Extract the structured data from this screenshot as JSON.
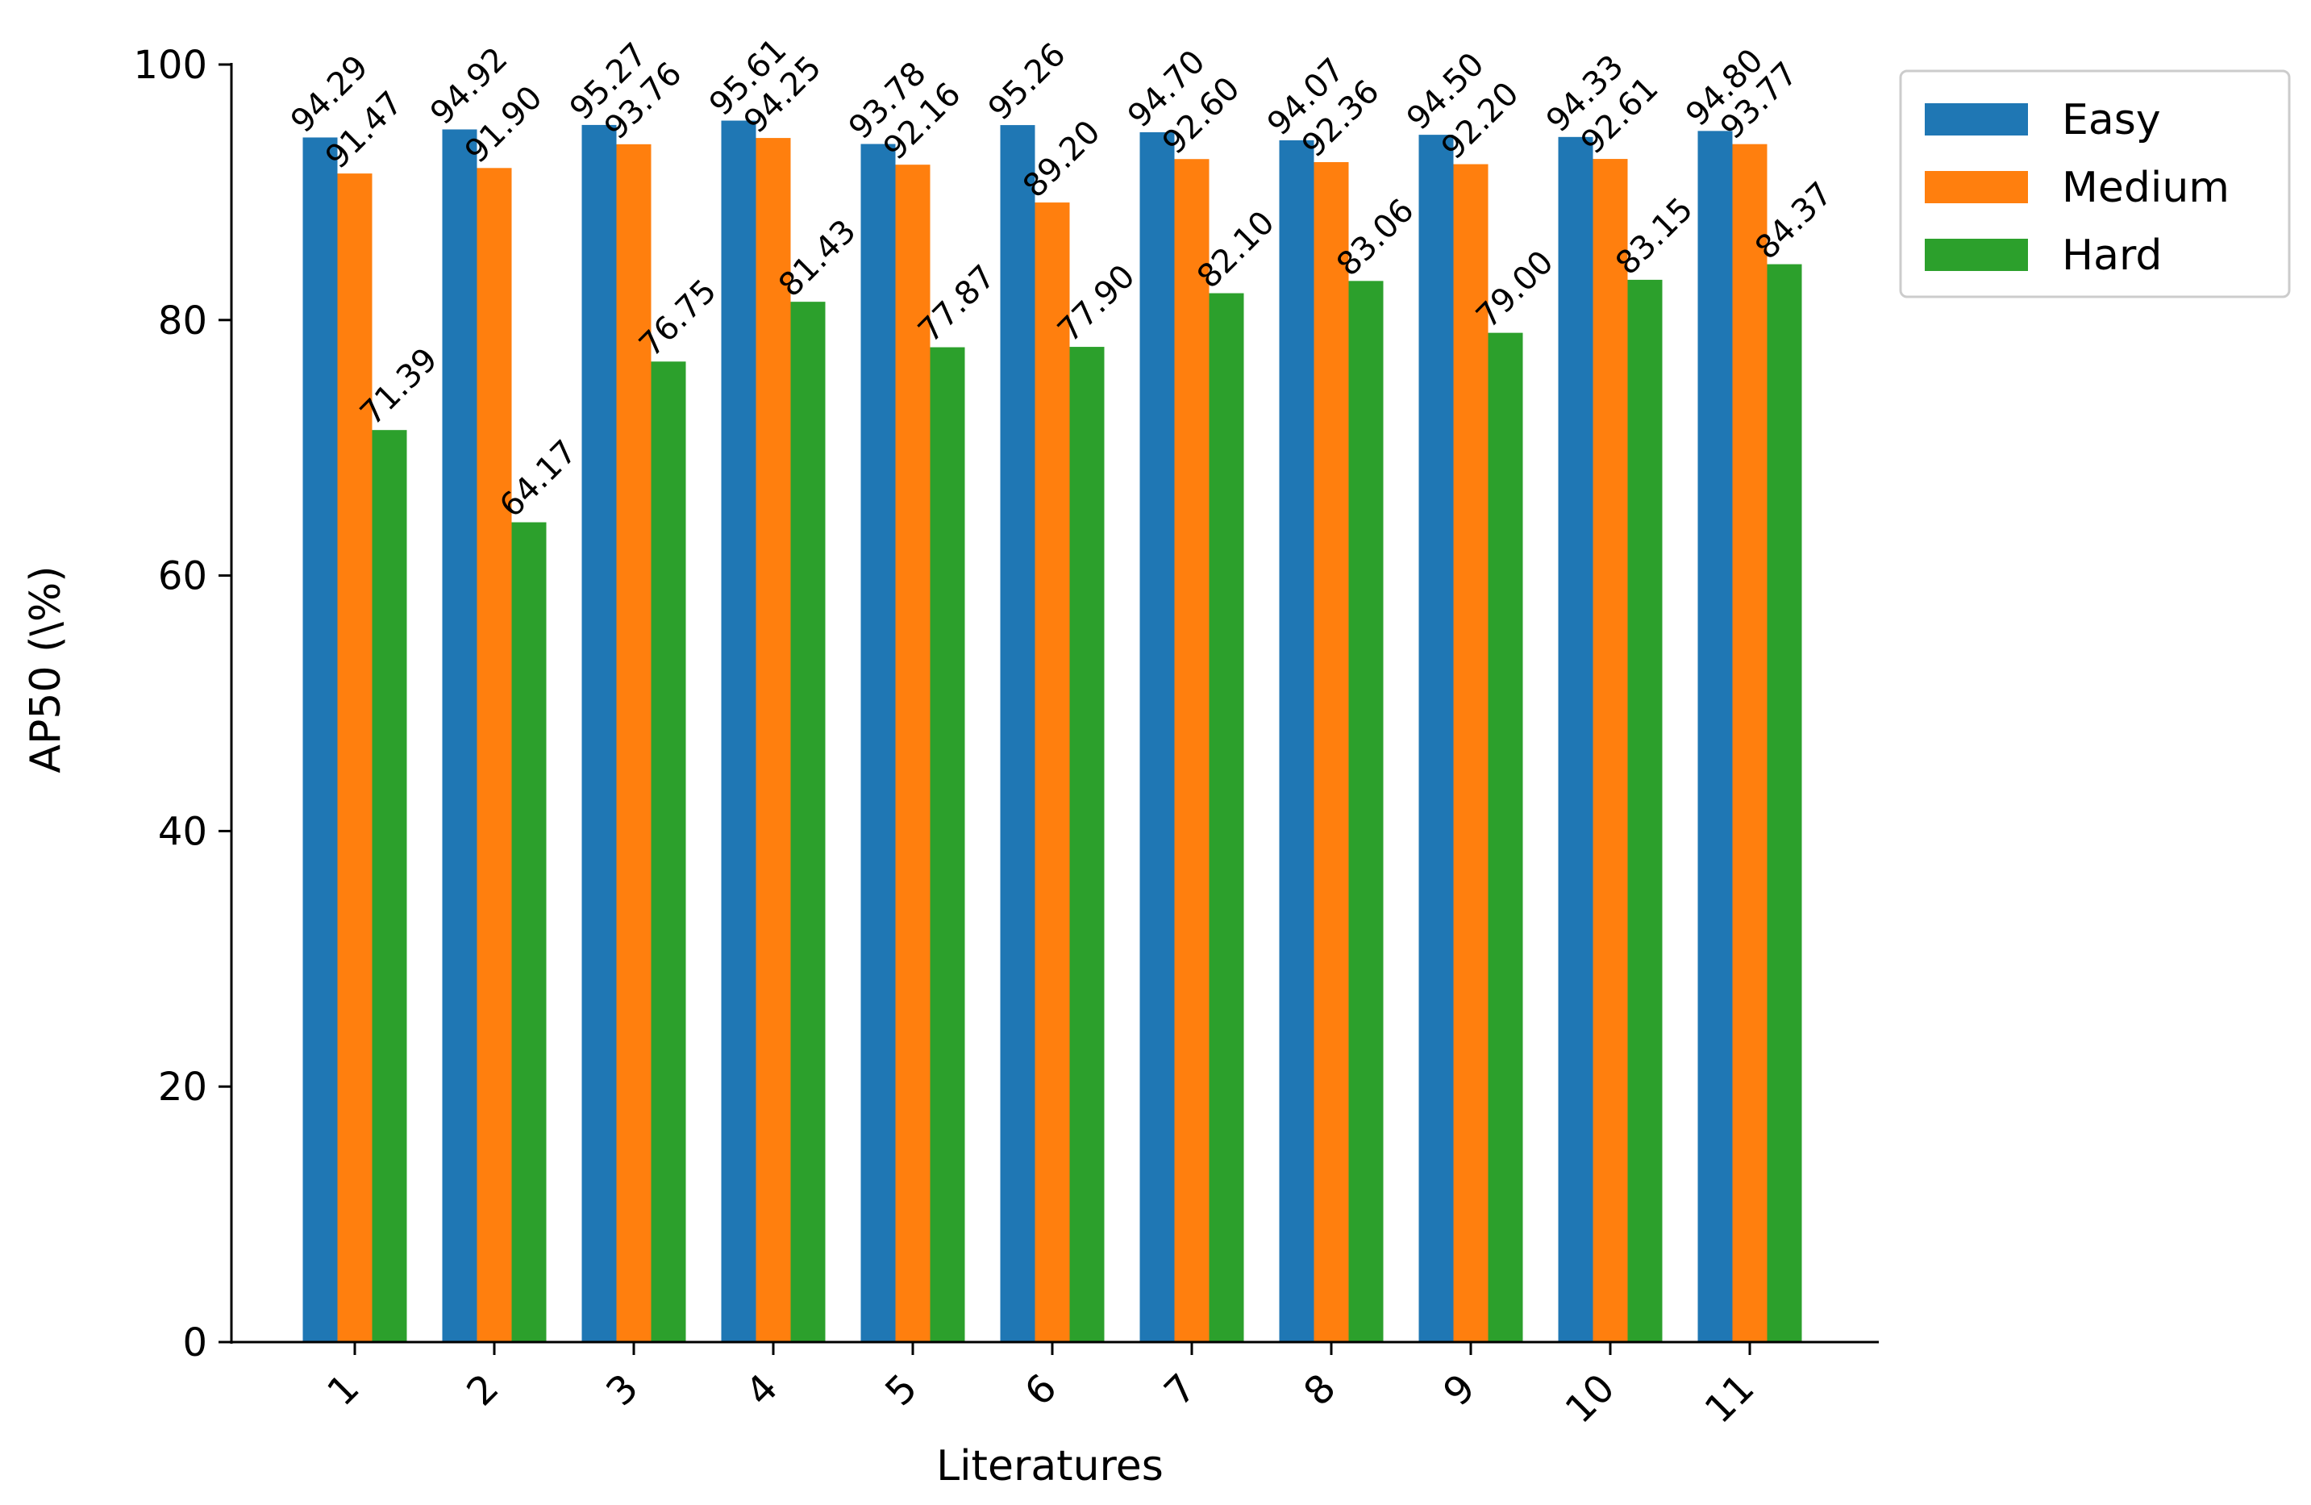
{
  "chart_data": {
    "type": "bar",
    "title": "",
    "xlabel": "Literatures",
    "ylabel": "AP50 (\\%)",
    "ylim": [
      0,
      100
    ],
    "yticks": [
      0,
      20,
      40,
      60,
      80,
      100
    ],
    "grid": false,
    "legend_position": "top-right (outside plot)",
    "categories": [
      "1",
      "2",
      "3",
      "4",
      "5",
      "6",
      "7",
      "8",
      "9",
      "10",
      "11"
    ],
    "series": [
      {
        "name": "Easy",
        "color": "#1f77b4",
        "values": [
          94.29,
          94.92,
          95.27,
          95.61,
          93.78,
          95.26,
          94.7,
          94.07,
          94.5,
          94.33,
          94.8
        ]
      },
      {
        "name": "Medium",
        "color": "#ff7f0e",
        "values": [
          91.47,
          91.9,
          93.76,
          94.25,
          92.16,
          89.2,
          92.6,
          92.36,
          92.2,
          92.61,
          93.77
        ]
      },
      {
        "name": "Hard",
        "color": "#2ca02c",
        "values": [
          71.39,
          64.17,
          76.75,
          81.43,
          77.87,
          77.9,
          82.1,
          83.06,
          79.0,
          83.15,
          84.37
        ]
      }
    ]
  }
}
